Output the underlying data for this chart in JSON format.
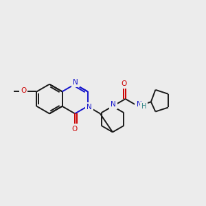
{
  "bg_color": "#ececec",
  "bond_color": "#1a1a1a",
  "N_color": "#1414cc",
  "O_color": "#cc0000",
  "H_color": "#3a8a8a",
  "line_width": 1.4,
  "figsize": [
    3.0,
    3.0
  ],
  "dpi": 100,
  "xlim": [
    0,
    10
  ],
  "ylim": [
    0,
    10
  ]
}
